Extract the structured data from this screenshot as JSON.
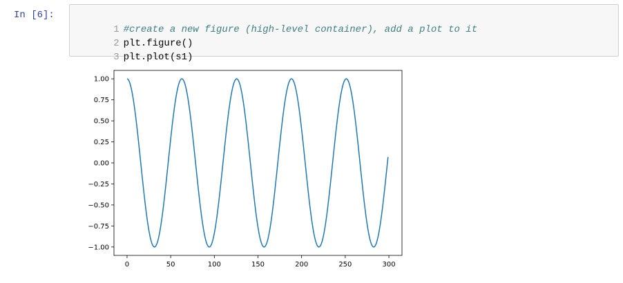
{
  "cell": {
    "prompt": "In [6]:",
    "lines": [
      {
        "num": "1",
        "text": "#create a new figure (high-level container), add a plot to it",
        "kind": "comment"
      },
      {
        "num": "2",
        "text": "plt.figure()",
        "kind": "code"
      },
      {
        "num": "3",
        "text": "plt.plot(s1)",
        "kind": "code"
      }
    ]
  },
  "chart_data": {
    "type": "line",
    "title": "",
    "xlabel": "",
    "ylabel": "",
    "xlim": [
      -15,
      315
    ],
    "ylim": [
      -1.1,
      1.1
    ],
    "x_ticks": [
      0,
      50,
      100,
      150,
      200,
      250,
      300
    ],
    "x_tick_labels": [
      "0",
      "50",
      "100",
      "150",
      "200",
      "250",
      "300"
    ],
    "y_ticks": [
      1.0,
      0.75,
      0.5,
      0.25,
      0.0,
      -0.25,
      -0.5,
      -0.75,
      -1.0
    ],
    "y_tick_labels": [
      "1.00",
      "0.75",
      "0.50",
      "0.25",
      "0.00",
      "−0.25",
      "−0.50",
      "−0.75",
      "−1.00"
    ],
    "grid": false,
    "series": [
      {
        "color": "#1f77b4",
        "function": "cos(2*pi*x/62.8)",
        "x_start": 0,
        "x_end": 299,
        "sample_points": [
          {
            "x": 0,
            "y": 1.0
          },
          {
            "x": 31,
            "y": -1.0
          },
          {
            "x": 63,
            "y": 1.0
          },
          {
            "x": 94,
            "y": -1.0
          },
          {
            "x": 126,
            "y": 1.0
          },
          {
            "x": 157,
            "y": -1.0
          },
          {
            "x": 189,
            "y": 1.0
          },
          {
            "x": 220,
            "y": -1.0
          },
          {
            "x": 251,
            "y": 1.0
          },
          {
            "x": 283,
            "y": -1.0
          },
          {
            "x": 299,
            "y": 0.07
          }
        ]
      }
    ]
  }
}
